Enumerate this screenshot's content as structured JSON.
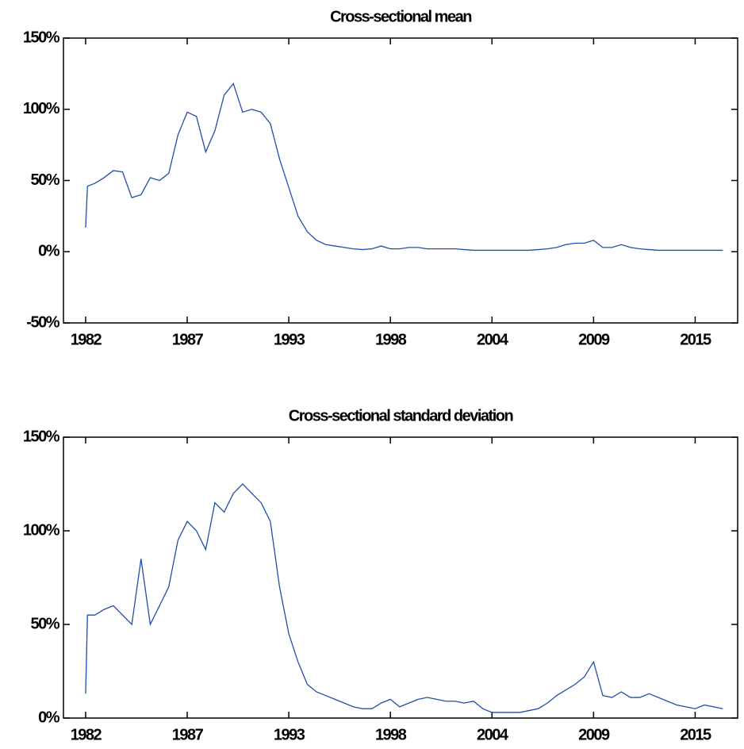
{
  "chart_data": [
    {
      "type": "line",
      "title": "Cross-sectional mean",
      "x": [
        1982,
        1982.1,
        1982.5,
        1983,
        1983.5,
        1984,
        1984.5,
        1985,
        1985.5,
        1986,
        1986.5,
        1987,
        1987.5,
        1988,
        1988.5,
        1989,
        1989.5,
        1990,
        1990.5,
        1991,
        1991.5,
        1992,
        1992.5,
        1993,
        1993.5,
        1994,
        1994.5,
        1995,
        1995.5,
        1996,
        1996.5,
        1997,
        1997.5,
        1998,
        1998.5,
        1999,
        1999.5,
        2000,
        2000.5,
        2001,
        2001.5,
        2002,
        2002.5,
        2003,
        2003.5,
        2004,
        2004.5,
        2005,
        2005.5,
        2006,
        2006.5,
        2007,
        2007.5,
        2008,
        2008.5,
        2009,
        2009.5,
        2010,
        2010.5,
        2011,
        2011.5,
        2012,
        2012.5,
        2013,
        2013.5,
        2014,
        2014.5,
        2015,
        2015.5,
        2016,
        2016.5
      ],
      "series": [
        {
          "color": "#1f4fa8",
          "values": [
            17,
            46,
            48,
            52,
            57,
            56,
            38,
            40,
            52,
            50,
            55,
            82,
            98,
            95,
            70,
            85,
            110,
            118,
            98,
            100,
            98,
            90,
            65,
            45,
            25,
            14,
            8,
            5,
            4,
            3,
            2,
            1.5,
            2,
            4,
            2,
            2,
            3,
            3,
            2,
            2,
            2,
            2,
            1.5,
            1,
            1,
            1,
            1,
            1,
            1,
            1,
            1.5,
            2,
            3,
            5,
            6,
            6,
            8,
            3,
            3,
            5,
            3,
            2,
            1.5,
            1,
            1,
            1,
            1,
            1,
            1,
            1,
            1
          ]
        }
      ],
      "xlim": [
        1980.8,
        2017.3
      ],
      "xticks": [
        {
          "value": 1982,
          "label": "1982"
        },
        {
          "value": 1987.5,
          "label": "1987"
        },
        {
          "value": 1993,
          "label": "1993"
        },
        {
          "value": 1998.5,
          "label": "1998"
        },
        {
          "value": 2004,
          "label": "2004"
        },
        {
          "value": 2009.5,
          "label": "2009"
        },
        {
          "value": 2015,
          "label": "2015"
        }
      ],
      "ylim": [
        -50,
        150
      ],
      "yticks": [
        {
          "value": -50,
          "label": "-50%"
        },
        {
          "value": 0,
          "label": "0%"
        },
        {
          "value": 50,
          "label": "50%"
        },
        {
          "value": 100,
          "label": "100%"
        },
        {
          "value": 150,
          "label": "150%"
        }
      ]
    },
    {
      "type": "line",
      "title": "Cross-sectional standard deviation",
      "x": [
        1982,
        1982.1,
        1982.5,
        1983,
        1983.5,
        1984,
        1984.5,
        1985,
        1985.5,
        1986,
        1986.5,
        1987,
        1987.5,
        1988,
        1988.5,
        1989,
        1989.5,
        1990,
        1990.5,
        1991,
        1991.5,
        1992,
        1992.5,
        1993,
        1993.5,
        1994,
        1994.5,
        1995,
        1995.5,
        1996,
        1996.5,
        1997,
        1997.5,
        1998,
        1998.5,
        1999,
        1999.5,
        2000,
        2000.5,
        2001,
        2001.5,
        2002,
        2002.5,
        2003,
        2003.5,
        2004,
        2004.5,
        2005,
        2005.5,
        2006,
        2006.5,
        2007,
        2007.5,
        2008,
        2008.5,
        2009,
        2009.5,
        2010,
        2010.5,
        2011,
        2011.5,
        2012,
        2012.5,
        2013,
        2013.5,
        2014,
        2014.5,
        2015,
        2015.5,
        2016,
        2016.5
      ],
      "series": [
        {
          "color": "#1f4fa8",
          "values": [
            13,
            55,
            55,
            58,
            60,
            55,
            50,
            85,
            50,
            60,
            70,
            95,
            105,
            100,
            90,
            115,
            110,
            120,
            125,
            120,
            115,
            105,
            70,
            45,
            30,
            18,
            14,
            12,
            10,
            8,
            6,
            5,
            5,
            8,
            10,
            6,
            8,
            10,
            11,
            10,
            9,
            9,
            8,
            9,
            5,
            3,
            3,
            3,
            3,
            4,
            5,
            8,
            12,
            15,
            18,
            22,
            30,
            12,
            11,
            14,
            11,
            11,
            13,
            11,
            9,
            7,
            6,
            5,
            7,
            6,
            5
          ]
        }
      ],
      "xlim": [
        1980.8,
        2017.3
      ],
      "xticks": [
        {
          "value": 1982,
          "label": "1982"
        },
        {
          "value": 1987.5,
          "label": "1987"
        },
        {
          "value": 1993,
          "label": "1993"
        },
        {
          "value": 1998.5,
          "label": "1998"
        },
        {
          "value": 2004,
          "label": "2004"
        },
        {
          "value": 2009.5,
          "label": "2009"
        },
        {
          "value": 2015,
          "label": "2015"
        }
      ],
      "ylim": [
        0,
        150
      ],
      "yticks": [
        {
          "value": 0,
          "label": "0%"
        },
        {
          "value": 50,
          "label": "50%"
        },
        {
          "value": 100,
          "label": "100%"
        },
        {
          "value": 150,
          "label": "150%"
        }
      ]
    }
  ]
}
